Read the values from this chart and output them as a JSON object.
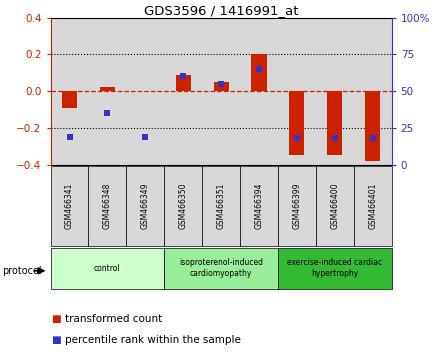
{
  "title": "GDS3596 / 1416991_at",
  "samples": [
    "GSM466341",
    "GSM466348",
    "GSM466349",
    "GSM466350",
    "GSM466351",
    "GSM466394",
    "GSM466399",
    "GSM466400",
    "GSM466401"
  ],
  "transformed_count": [
    -0.09,
    0.02,
    0.0,
    0.09,
    0.05,
    0.2,
    -0.35,
    -0.35,
    -0.38
  ],
  "percentile_rank": [
    19,
    35,
    19,
    60,
    55,
    65,
    18,
    18,
    18
  ],
  "groups": [
    {
      "label": "control",
      "start": 0,
      "end": 3,
      "color": "#ccffcc"
    },
    {
      "label": "isoproterenol-induced\ncardiomyopathy",
      "start": 3,
      "end": 6,
      "color": "#99ee99"
    },
    {
      "label": "exercise-induced cardiac\nhypertrophy",
      "start": 6,
      "end": 9,
      "color": "#33bb33"
    }
  ],
  "ylim": [
    -0.4,
    0.4
  ],
  "y2lim": [
    0,
    100
  ],
  "yticks": [
    -0.4,
    -0.2,
    0.0,
    0.2,
    0.4
  ],
  "y2ticks": [
    0,
    25,
    50,
    75,
    100
  ],
  "y2labels": [
    "0",
    "25",
    "50",
    "75",
    "100%"
  ],
  "bar_color": "#cc2200",
  "dot_color": "#3333cc",
  "cell_color": "#d8d8d8",
  "plot_bg": "#ffffff",
  "legend_items": [
    "transformed count",
    "percentile rank within the sample"
  ]
}
